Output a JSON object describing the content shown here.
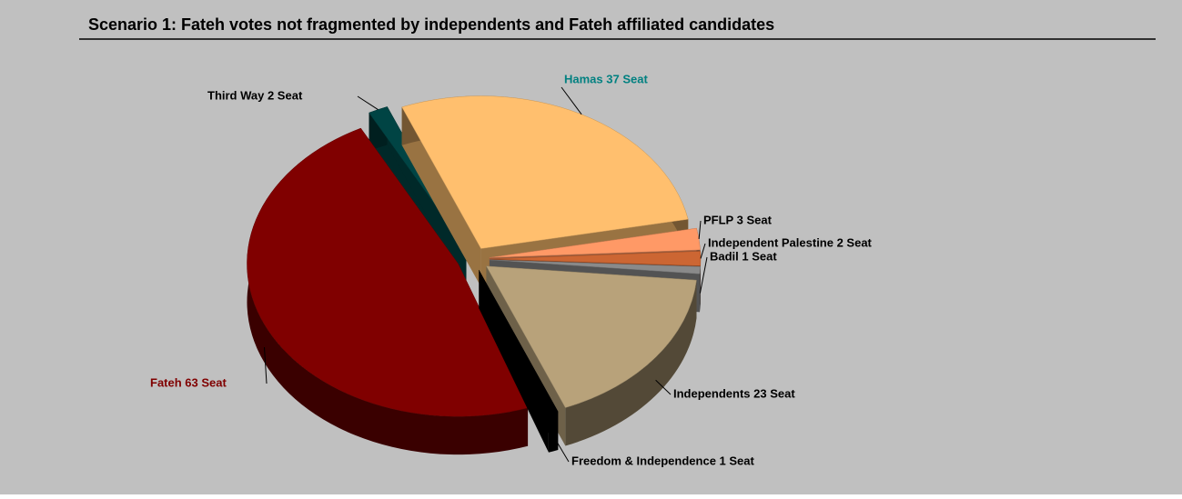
{
  "chart_data": {
    "type": "pie3d",
    "title": "Scenario 1: Fateh votes not fragmented by independents and Fateh affiliated candidates",
    "values": [
      37,
      3,
      2,
      1,
      23,
      1,
      63,
      2
    ],
    "value_labels": [
      "Hamas  37  Seat",
      "PFLP  3  Seat",
      "Independent Palestine  2  Seat",
      "Badil  1  Seat",
      "Independents  23  Seat",
      "Freedom & Independence  1  Seat",
      "Fateh  63  Seat",
      "Third Way  2  Seat"
    ],
    "colors": [
      "#ffbf6e",
      "#ff9966",
      "#cc6633",
      "#8a8a8a",
      "#b8a27a",
      "#000000",
      "#800000",
      "#004444"
    ],
    "label_colors": [
      "#008080",
      "#000000",
      "#000000",
      "#000000",
      "#000000",
      "#000000",
      "#800000",
      "#000000"
    ]
  }
}
